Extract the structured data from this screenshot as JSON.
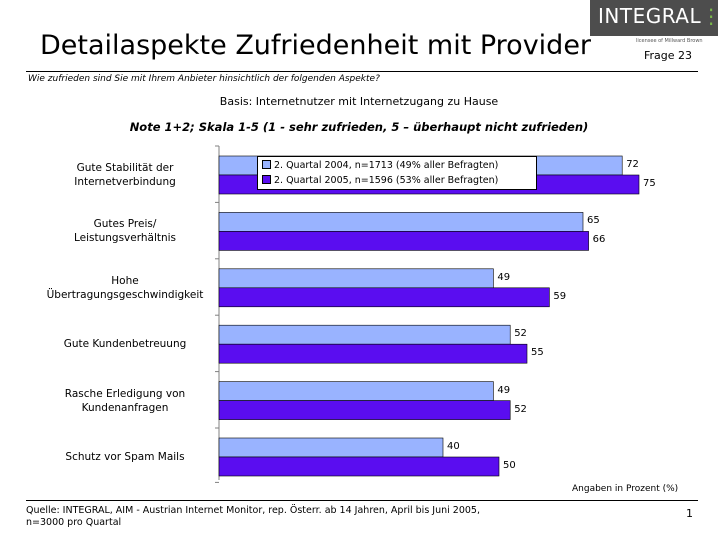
{
  "slide": {
    "title": "Detailaspekte Zufriedenheit mit Provider",
    "page_label": "Frage 23",
    "question": "Wie zufrieden sind Sie mit Ihrem Anbieter hinsichtlich der folgenden Aspekte?",
    "basis": "Basis: Internetnutzer mit Internetzugang zu Hause",
    "note": "Note 1+2; Skala 1-5 (1 - sehr zufrieden, 5 – überhaupt nicht zufrieden)",
    "units_note": "Angaben in Prozent (%)",
    "source_line1": "Quelle: INTEGRAL, AIM - Austrian Internet Monitor, rep. Österr. ab 14 Jahren, April bis Juni 2005,",
    "source_line2": "n=3000 pro Quartal",
    "page_number": "1"
  },
  "logo": {
    "text_main": "INTEGRAL",
    "text_accent": "⋮",
    "licensee": "licensee of  Millward Brown"
  },
  "colors": {
    "series_2004": "#99B3FF",
    "series_2005": "#5A0DF0",
    "logo_bg": "#4d4d4d",
    "axis": "#808080"
  },
  "chart_data": {
    "type": "bar",
    "orientation": "horizontal",
    "categories": [
      [
        "Gute Stabilität der",
        "Internetverbindung"
      ],
      [
        "Gutes Preis/",
        "Leistungsverhältnis"
      ],
      [
        "Hohe",
        "Übertragungsgeschwindigkeit"
      ],
      [
        "Gute Kundenbetreuung"
      ],
      [
        "Rasche Erledigung von",
        "Kundenanfragen"
      ],
      [
        "Schutz vor Spam Mails"
      ]
    ],
    "series": [
      {
        "name": "2. Quartal 2004, n=1713 (49% aller Befragten)",
        "values": [
          72,
          65,
          49,
          52,
          49,
          40
        ]
      },
      {
        "name": "2. Quartal 2005, n=1596 (53% aller Befragten)",
        "values": [
          75,
          66,
          59,
          55,
          52,
          50
        ]
      }
    ],
    "xlim": [
      0,
      100
    ],
    "grid": false,
    "legend_position": "top-left inside plot"
  }
}
